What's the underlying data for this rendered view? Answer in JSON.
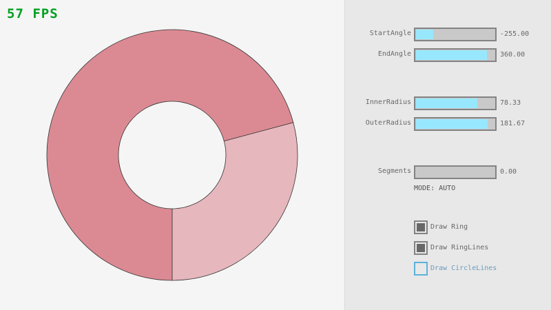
{
  "fps": "57 FPS",
  "ring": {
    "start_angle": -255.0,
    "end_angle": 360.0,
    "inner_radius": 78.33,
    "outer_radius": 181.67,
    "colors": {
      "ring_overlap": "#db8a93",
      "ring": "#e6b7bd",
      "lines": "#333333"
    }
  },
  "controls": {
    "sliders": [
      {
        "label": "StartAngle",
        "value": "-255.00",
        "fraction": 0.217
      },
      {
        "label": "EndAngle",
        "value": "360.00",
        "fraction": 0.9
      },
      {
        "label": "InnerRadius",
        "value": "78.33",
        "fraction": 0.783
      },
      {
        "label": "OuterRadius",
        "value": "181.67",
        "fraction": 0.908
      },
      {
        "label": "Segments",
        "value": "0.00",
        "fraction": 0
      }
    ],
    "mode": "MODE: AUTO",
    "checkboxes": [
      {
        "label": "Draw Ring",
        "checked": true
      },
      {
        "label": "Draw RingLines",
        "checked": true
      },
      {
        "label": "Draw CircleLines",
        "checked": false
      }
    ]
  },
  "colors": {
    "fps": "#00a01e",
    "slider_fill": "#97e8ff",
    "focus": "#5bb2d9"
  }
}
